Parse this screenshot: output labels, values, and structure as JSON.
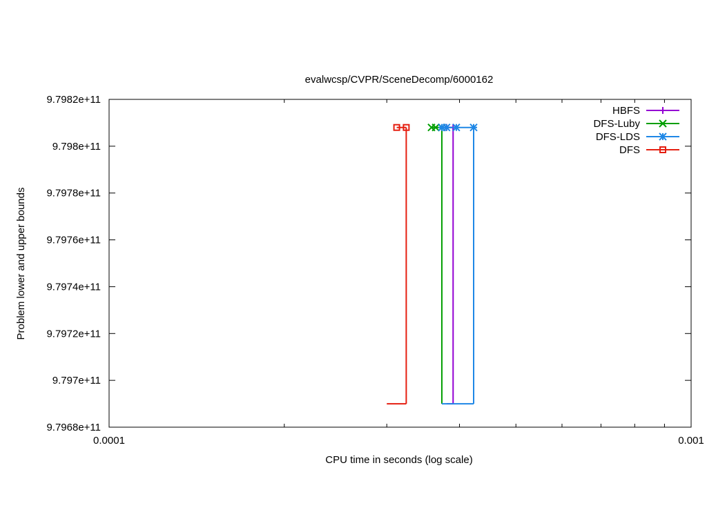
{
  "chart_data": {
    "type": "line",
    "title": "evalwcsp/CVPR/SceneDecomp/6000162",
    "xlabel": "CPU time in seconds (log scale)",
    "ylabel": "Problem lower and upper bounds",
    "x_scale": "log",
    "xlim": [
      0.0001,
      0.001
    ],
    "ylim": [
      979680000000,
      979820000000
    ],
    "x_ticks": [
      {
        "value": 0.0001,
        "label": "0.0001"
      },
      {
        "value": 0.001,
        "label": "0.001"
      }
    ],
    "y_ticks": [
      {
        "value": 979680000000,
        "label": "9.7968e+11"
      },
      {
        "value": 979700000000,
        "label": "9.797e+11"
      },
      {
        "value": 979720000000,
        "label": "9.7972e+11"
      },
      {
        "value": 979740000000,
        "label": "9.7974e+11"
      },
      {
        "value": 979760000000,
        "label": "9.7976e+11"
      },
      {
        "value": 979780000000,
        "label": "9.7978e+11"
      },
      {
        "value": 979800000000,
        "label": "9.798e+11"
      },
      {
        "value": 979820000000,
        "label": "9.7982e+11"
      }
    ],
    "grid": false,
    "legend_position": "top-right",
    "series": [
      {
        "name": "HBFS",
        "color": "#9400d3",
        "marker": "plus",
        "upper": [
          [
            0.00038,
            979808000000
          ],
          [
            0.00039,
            979808000000
          ]
        ],
        "lower": [
          [
            0.00038,
            979690000000
          ]
        ],
        "time_end": 0.00039
      },
      {
        "name": "DFS-Luby",
        "color": "#009e00",
        "marker": "cross",
        "upper": [
          [
            0.000358,
            979808000000
          ],
          [
            0.000364,
            979808000000
          ],
          [
            0.000373,
            979808000000
          ]
        ],
        "lower": [
          [
            0.000373,
            979690000000
          ]
        ],
        "time_end": 0.000373
      },
      {
        "name": "DFS-LDS",
        "color": "#1e87e6",
        "marker": "star",
        "upper": [
          [
            0.000373,
            979808000000
          ],
          [
            0.00038,
            979808000000
          ],
          [
            0.000395,
            979808000000
          ],
          [
            0.000423,
            979808000000
          ]
        ],
        "lower": [
          [
            0.000373,
            979690000000
          ]
        ],
        "time_end": 0.000423
      },
      {
        "name": "DFS",
        "color": "#e51e10",
        "marker": "square",
        "upper": [
          [
            0.000312,
            979808000000
          ],
          [
            0.000324,
            979808000000
          ]
        ],
        "lower": [
          [
            0.0003,
            979690000000
          ]
        ],
        "time_end": 0.000324
      }
    ]
  }
}
